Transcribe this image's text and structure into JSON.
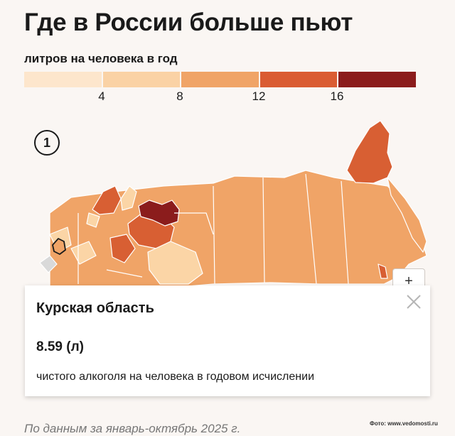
{
  "header": {
    "title": "Где в России больше пьют",
    "subtitle": "литров на человека в год"
  },
  "legend": {
    "colors": [
      "#fde6cc",
      "#fad2a5",
      "#f0a467",
      "#da5c33",
      "#8b1c1c"
    ],
    "ticks": [
      "4",
      "8",
      "12",
      "16"
    ]
  },
  "map": {
    "badge": "1",
    "zoom_label": "+",
    "colors": {
      "light": "#fbd5a6",
      "medium": "#f0a467",
      "dark": "#d85f33",
      "darkest": "#8b1c1c",
      "nodata": "#d9d9d9",
      "border": "#ffffff"
    }
  },
  "tooltip": {
    "region": "Курская область",
    "value": "8.59 (л)",
    "description": "чистого алкоголя на человека в годовом исчислении",
    "close_icon": "close-icon"
  },
  "footer": {
    "source": "По данным за январь-октябрь 2025 г.",
    "credit": "Фото: www.vedomosti.ru"
  }
}
